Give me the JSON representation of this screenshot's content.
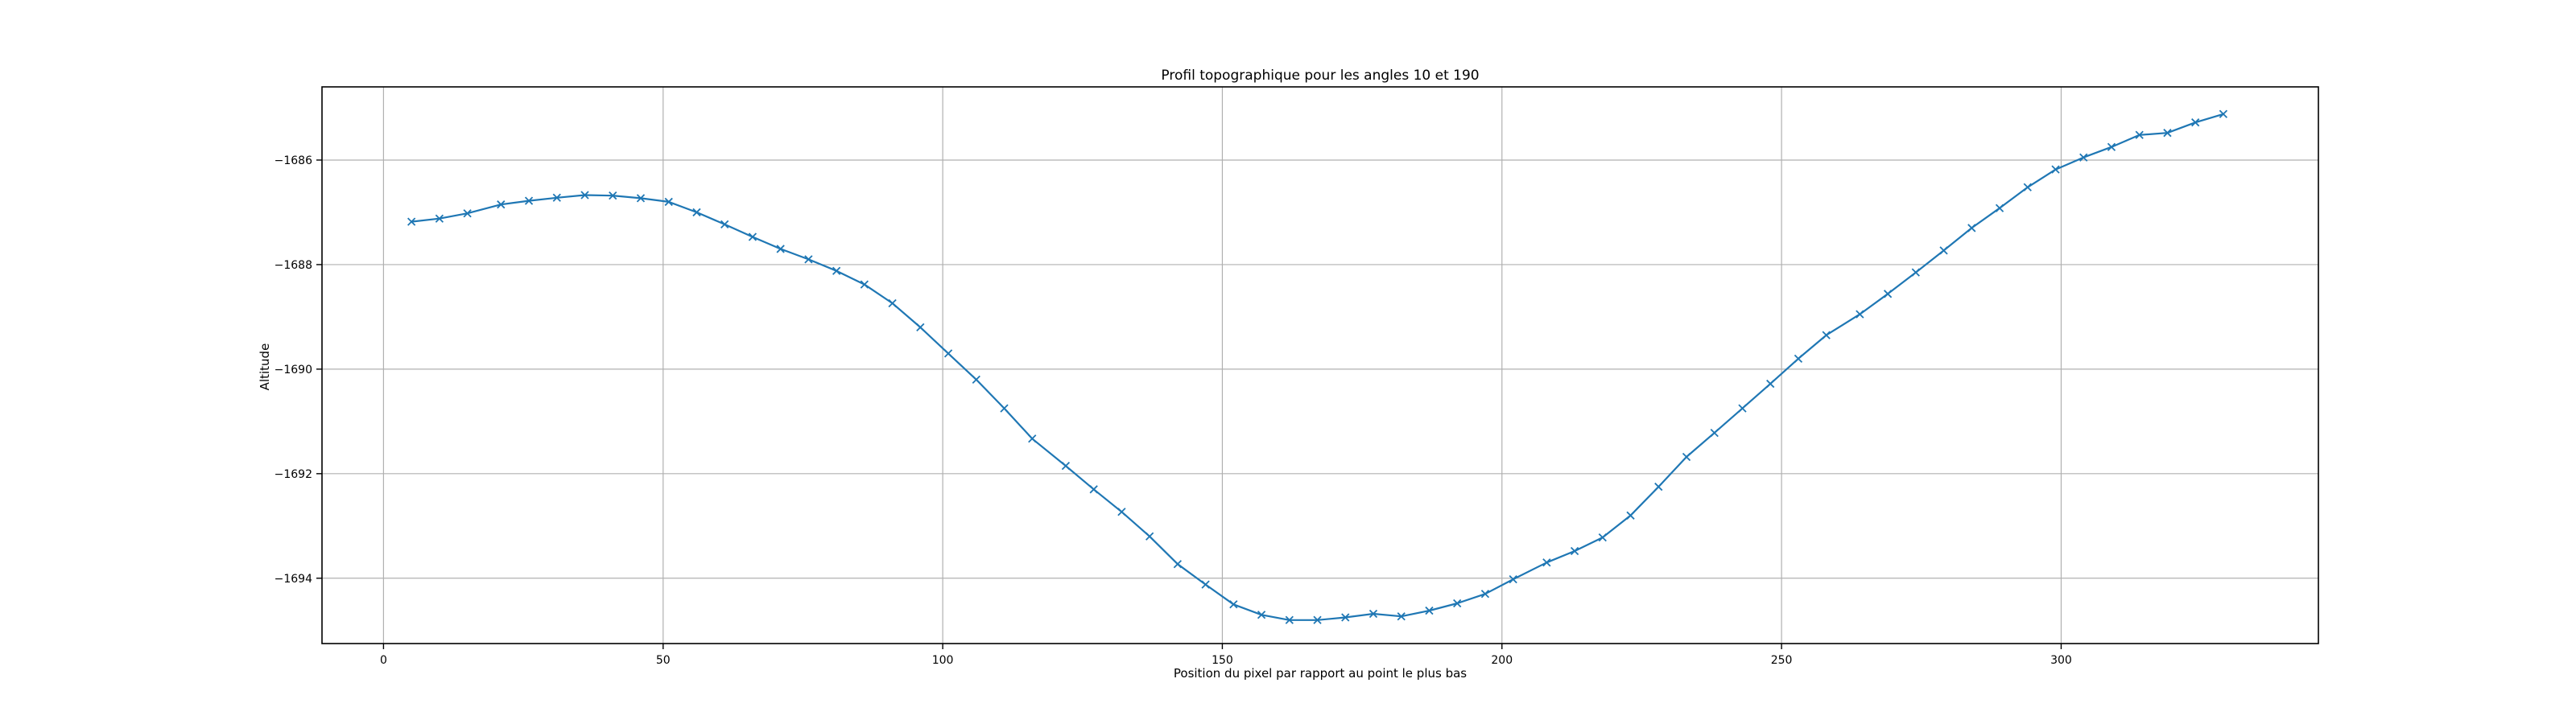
{
  "chart_data": {
    "type": "line",
    "title": "Profil topographique pour les angles 10 et 190",
    "xlabel": "Position du pixel par rapport au point le plus bas",
    "ylabel": "Altitude",
    "xlim": [
      -11,
      346
    ],
    "ylim": [
      -1695.25,
      -1684.6
    ],
    "xticks": [
      0,
      50,
      100,
      150,
      200,
      250,
      300
    ],
    "yticks": [
      -1686,
      -1688,
      -1690,
      -1692,
      -1694
    ],
    "xtick_labels": [
      "0",
      "50",
      "100",
      "150",
      "200",
      "250",
      "300"
    ],
    "ytick_labels": [
      "−1686",
      "−1688",
      "−1690",
      "−1692",
      "−1694"
    ],
    "grid": true,
    "marker": "x",
    "color": "#1f77b4",
    "series": [
      {
        "x": [
          5,
          10,
          15,
          21,
          26,
          31,
          36,
          41,
          46,
          51,
          56,
          61,
          66,
          71,
          76,
          81,
          86,
          91,
          96,
          101,
          106,
          111,
          116,
          122,
          127,
          132,
          137,
          142,
          147,
          152,
          157,
          162,
          167,
          172,
          177,
          182,
          187,
          192,
          197,
          202,
          208,
          213,
          218,
          223,
          228,
          233,
          238,
          243,
          248,
          253,
          258,
          264,
          269,
          274,
          279,
          284,
          289,
          294,
          299,
          304,
          309,
          314,
          319,
          324,
          329
        ],
        "y": [
          -1687.18,
          -1687.12,
          -1687.02,
          -1686.85,
          -1686.78,
          -1686.72,
          -1686.67,
          -1686.68,
          -1686.73,
          -1686.8,
          -1687.0,
          -1687.23,
          -1687.47,
          -1687.7,
          -1687.9,
          -1688.12,
          -1688.38,
          -1688.74,
          -1689.2,
          -1689.7,
          -1690.2,
          -1690.75,
          -1691.33,
          -1691.85,
          -1692.3,
          -1692.73,
          -1693.2,
          -1693.73,
          -1694.12,
          -1694.5,
          -1694.7,
          -1694.8,
          -1694.8,
          -1694.75,
          -1694.68,
          -1694.73,
          -1694.62,
          -1694.48,
          -1694.3,
          -1694.02,
          -1693.7,
          -1693.48,
          -1693.22,
          -1692.8,
          -1692.25,
          -1691.68,
          -1691.22,
          -1690.75,
          -1690.28,
          -1689.8,
          -1689.35,
          -1688.95,
          -1688.56,
          -1688.15,
          -1687.73,
          -1687.3,
          -1686.92,
          -1686.52,
          -1686.18,
          -1685.95,
          -1685.75,
          -1685.52,
          -1685.48,
          -1685.28,
          -1685.12
        ]
      }
    ]
  }
}
